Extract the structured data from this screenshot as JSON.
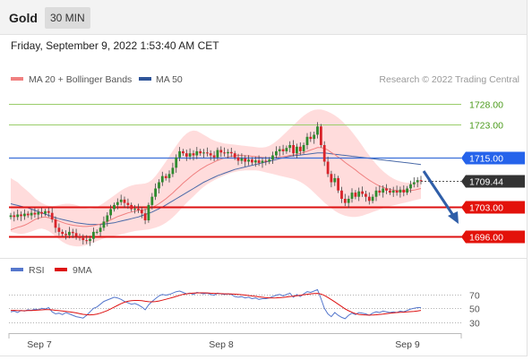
{
  "header": {
    "symbol": "Gold",
    "timeframe": "30 MIN"
  },
  "datetime": "Friday, September 9, 2022 1:53:40 AM CET",
  "legend": {
    "ma20": "MA 20 + Bollinger Bands",
    "ma50": "MA 50",
    "credit": "Research © 2022 Trading Central"
  },
  "colors": {
    "bullish": "#2e8b2e",
    "bearish": "#d9232a",
    "resistance": "#9acd6a",
    "pivot": "#3a6fd8",
    "support": "#dd1111",
    "ma50": "#4a6aa8",
    "ma20": "#f08080",
    "bands": "#ffd6d6"
  },
  "chart_data": [
    {
      "type": "candlestick",
      "x_ticks": [
        "Sep 7",
        "Sep 8",
        "Sep 9"
      ],
      "y_range": [
        1692,
        1731
      ],
      "levels": [
        {
          "label": "1728.00",
          "value": 1728.0,
          "kind": "resistance"
        },
        {
          "label": "1723.00",
          "value": 1723.0,
          "kind": "resistance"
        },
        {
          "label": "1715.00",
          "value": 1715.0,
          "kind": "pivot"
        },
        {
          "label": "1709.44",
          "value": 1709.44,
          "kind": "last"
        },
        {
          "label": "1703.00",
          "value": 1703.0,
          "kind": "support"
        },
        {
          "label": "1696.00",
          "value": 1696.0,
          "kind": "support"
        }
      ],
      "closes": [
        1701,
        1700.6,
        1701.2,
        1700.8,
        1701.4,
        1701,
        1701.6,
        1701.2,
        1701.8,
        1701.4,
        1702,
        1701.6,
        1700,
        1698,
        1697,
        1696.5,
        1696.2,
        1697,
        1696.7,
        1696,
        1695.5,
        1695,
        1694.8,
        1695.3,
        1697,
        1697,
        1698,
        1699.5,
        1701,
        1702.5,
        1703.5,
        1704.2,
        1704.8,
        1704,
        1703.5,
        1702.5,
        1702.6,
        1702.3,
        1701.5,
        1699.8,
        1703.5,
        1705.5,
        1707.5,
        1709,
        1710.5,
        1710,
        1711,
        1712.5,
        1715,
        1716.5,
        1716,
        1715.2,
        1716,
        1715.5,
        1716.5,
        1716,
        1716.2,
        1716,
        1715.5,
        1715,
        1716.8,
        1716.2,
        1716,
        1716.3,
        1716,
        1715,
        1714.2,
        1714.8,
        1714,
        1714.5,
        1713.8,
        1714.3,
        1713.7,
        1714.2,
        1714,
        1714.5,
        1715.5,
        1716.5,
        1717,
        1716.5,
        1717.3,
        1718,
        1716,
        1717.6,
        1716.5,
        1718,
        1720,
        1719.5,
        1720.5,
        1722.5,
        1718,
        1714,
        1711,
        1709,
        1710,
        1707,
        1705,
        1704,
        1705,
        1706.5,
        1705.5,
        1706.8,
        1706.2,
        1705.5,
        1704.5,
        1705.5,
        1707,
        1706.5,
        1707.5,
        1707,
        1706.5,
        1707,
        1706.5,
        1707.2,
        1706.5,
        1707.5,
        1708.5,
        1709,
        1709.5,
        1709.44
      ],
      "ma20": [
        1697.5,
        1697.8,
        1698.1,
        1698.3,
        1698.6,
        1699,
        1699.5,
        1700,
        1700.3,
        1700.5,
        1700.6,
        1700.4,
        1700.2,
        1699.9,
        1699.6,
        1699.3,
        1699,
        1698.8,
        1698.6,
        1698.5,
        1698.4,
        1698.3,
        1698.3,
        1698.4,
        1698.5,
        1698.7,
        1698.9,
        1699.2,
        1699.5,
        1699.9,
        1700.3,
        1700.7,
        1701,
        1701.3,
        1701.6,
        1701.8,
        1702,
        1702.2,
        1702.3,
        1702.4,
        1702.6,
        1702.9,
        1703.3,
        1703.8,
        1704.4,
        1705,
        1705.7,
        1706.4,
        1707.2,
        1708,
        1708.8,
        1709.5,
        1710.2,
        1710.9,
        1711.5,
        1712.1,
        1712.6,
        1713.1,
        1713.5,
        1713.9,
        1714.3,
        1714.6,
        1714.9,
        1715.1,
        1715.3,
        1715.4,
        1715.5,
        1715.5,
        1715.4,
        1715.4,
        1715.3,
        1715.2,
        1715.1,
        1715,
        1714.9,
        1714.9,
        1714.9,
        1715,
        1715.1,
        1715.2,
        1715.3,
        1715.5,
        1715.6,
        1715.8,
        1716,
        1716.2,
        1716.5,
        1716.8,
        1717.1,
        1717.4,
        1717.4,
        1717.2,
        1716.8,
        1716.2,
        1715.7,
        1715.1,
        1714.5,
        1713.8,
        1713.2,
        1712.6,
        1712,
        1711.3,
        1710.7,
        1710.1,
        1709.5,
        1709,
        1708.5,
        1708.1,
        1707.8,
        1707.5,
        1707.3,
        1707.1,
        1707,
        1706.9,
        1706.9,
        1706.9,
        1707,
        1707.1,
        1707.3,
        1707.5
      ],
      "ma50": [
        1703.8,
        1703.6,
        1703.4,
        1703.2,
        1703,
        1702.8,
        1702.5,
        1702.2,
        1701.9,
        1701.6,
        1701.3,
        1701,
        1700.7,
        1700.4,
        1700.2,
        1700,
        1699.8,
        1699.6,
        1699.4,
        1699.2,
        1699.1,
        1699,
        1698.9,
        1698.8,
        1698.8,
        1698.8,
        1698.8,
        1698.9,
        1699,
        1699.1,
        1699.2,
        1699.4,
        1699.6,
        1699.8,
        1700,
        1700.2,
        1700.4,
        1700.6,
        1700.9,
        1701.2,
        1701.5,
        1701.8,
        1702.2,
        1702.6,
        1703,
        1703.5,
        1704,
        1704.5,
        1705,
        1705.5,
        1706,
        1706.5,
        1707,
        1707.5,
        1708,
        1708.5,
        1709,
        1709.4,
        1709.8,
        1710.2,
        1710.6,
        1710.9,
        1711.2,
        1711.5,
        1711.8,
        1712.1,
        1712.3,
        1712.5,
        1712.7,
        1712.9,
        1713.1,
        1713.3,
        1713.5,
        1713.7,
        1713.9,
        1714.1,
        1714.3,
        1714.5,
        1714.7,
        1714.9,
        1715.1,
        1715.3,
        1715.4,
        1715.5,
        1715.6,
        1715.7,
        1715.8,
        1715.9,
        1716,
        1716.1,
        1716.1,
        1716.1,
        1716,
        1715.9,
        1715.8,
        1715.7,
        1715.6,
        1715.5,
        1715.4,
        1715.3,
        1715.2,
        1715.1,
        1715,
        1714.9,
        1714.8,
        1714.7,
        1714.6,
        1714.5,
        1714.4,
        1714.3,
        1714.2,
        1714.1,
        1714,
        1713.9,
        1713.8,
        1713.7,
        1713.6,
        1713.5,
        1713.4,
        1713.3
      ],
      "bb_upper": [
        1710,
        1709.5,
        1709,
        1708.2,
        1707.5,
        1706.8,
        1706,
        1705.2,
        1704.5,
        1704,
        1703.6,
        1703.3,
        1703.2,
        1703.3,
        1703.5,
        1703.7,
        1703.8,
        1703.8,
        1703.7,
        1703.5,
        1703.2,
        1702.9,
        1702.7,
        1702.6,
        1702.7,
        1703,
        1703.5,
        1704,
        1704.6,
        1705.2,
        1705.8,
        1706.4,
        1707,
        1707.5,
        1707.9,
        1708.2,
        1708.4,
        1708.5,
        1708.6,
        1708.7,
        1709,
        1709.6,
        1710.5,
        1711.6,
        1712.8,
        1714,
        1715.3,
        1716.6,
        1717.8,
        1719,
        1720,
        1720.8,
        1721.3,
        1721.5,
        1721.4,
        1721,
        1720.5,
        1720,
        1719.5,
        1719.1,
        1718.8,
        1718.6,
        1718.4,
        1718.3,
        1718.2,
        1718.1,
        1718,
        1717.9,
        1717.8,
        1717.7,
        1717.6,
        1717.5,
        1717.4,
        1717.4,
        1717.5,
        1717.8,
        1718.3,
        1718.9,
        1719.6,
        1720.4,
        1721.2,
        1722,
        1722.8,
        1723.6,
        1724.4,
        1725.1,
        1725.7,
        1726.2,
        1726.5,
        1726.6,
        1726.6,
        1726.4,
        1726.1,
        1725.7,
        1725.2,
        1724.6,
        1723.9,
        1723.1,
        1722.2,
        1721.2,
        1720.1,
        1719,
        1717.8,
        1716.6,
        1715.5,
        1714.4,
        1713.4,
        1712.5,
        1711.7,
        1711,
        1710.4,
        1709.9,
        1709.5,
        1709.2,
        1709,
        1708.9,
        1708.9,
        1709,
        1709.2,
        1709.5
      ],
      "bb_lower": [
        1697,
        1696.8,
        1696.6,
        1696.5,
        1696.6,
        1696.8,
        1697.1,
        1697.4,
        1697.7,
        1697.8,
        1697.6,
        1697.2,
        1696.6,
        1695.9,
        1695.2,
        1694.6,
        1694.1,
        1693.8,
        1693.6,
        1693.5,
        1693.5,
        1693.6,
        1693.8,
        1694.1,
        1694.4,
        1694.8,
        1695.1,
        1695.4,
        1695.6,
        1695.8,
        1696,
        1696.2,
        1696.4,
        1696.6,
        1696.8,
        1697,
        1697.2,
        1697.3,
        1697.4,
        1697.5,
        1697.6,
        1697.8,
        1698,
        1698.3,
        1698.7,
        1699.2,
        1699.8,
        1700.5,
        1701.3,
        1702.2,
        1703.1,
        1704,
        1704.8,
        1705.6,
        1706.4,
        1707.2,
        1707.9,
        1708.5,
        1709,
        1709.5,
        1709.9,
        1710.3,
        1710.7,
        1711,
        1711.3,
        1711.5,
        1711.7,
        1711.8,
        1711.9,
        1711.9,
        1711.9,
        1711.9,
        1711.8,
        1711.6,
        1711.4,
        1711.2,
        1711,
        1710.8,
        1710.6,
        1710.4,
        1710.2,
        1710,
        1709.8,
        1709.5,
        1709.1,
        1708.6,
        1708,
        1707.3,
        1706.5,
        1705.7,
        1704.9,
        1704.1,
        1703.4,
        1702.7,
        1702.1,
        1701.6,
        1701.2,
        1700.9,
        1700.7,
        1700.6,
        1700.6,
        1700.7,
        1700.9,
        1701.2,
        1701.5,
        1701.8,
        1702.1,
        1702.4,
        1702.7,
        1703,
        1703.2,
        1703.4,
        1703.6,
        1703.8,
        1704,
        1704.2,
        1704.4,
        1704.6,
        1704.8,
        1705
      ]
    },
    {
      "type": "line",
      "legend": [
        "RSI",
        "9MA"
      ],
      "y_ticks": [
        "70",
        "50",
        "30"
      ],
      "levels": [
        70,
        50,
        30
      ],
      "y_range": [
        22,
        84
      ],
      "rsi": [
        45,
        46,
        44,
        47,
        46,
        48,
        47,
        49,
        48,
        50,
        49,
        51,
        45,
        42,
        43,
        41,
        44,
        42,
        40,
        38,
        37,
        36,
        40,
        45,
        50,
        52,
        56,
        60,
        62,
        64,
        66,
        65,
        63,
        60,
        58,
        56,
        57,
        55,
        52,
        48,
        55,
        60,
        64,
        68,
        70,
        69,
        70,
        72,
        74,
        75,
        73,
        71,
        72,
        70,
        73,
        72,
        71,
        72,
        70,
        69,
        72,
        71,
        70,
        71,
        70,
        67,
        66,
        67,
        65,
        66,
        64,
        65,
        63,
        64,
        64,
        65,
        67,
        69,
        70,
        68,
        70,
        72,
        66,
        70,
        67,
        71,
        74,
        73,
        75,
        77,
        64,
        50,
        42,
        38,
        44,
        40,
        37,
        35,
        40,
        43,
        41,
        44,
        43,
        42,
        40,
        43,
        45,
        44,
        46,
        45,
        44,
        45,
        44,
        46,
        45,
        47,
        49,
        50,
        51,
        51
      ],
      "ma9": [
        47,
        47,
        46.8,
        46.7,
        46.6,
        46.8,
        46.9,
        47.2,
        47.4,
        47.8,
        48.1,
        48.2,
        47.8,
        47.2,
        46.7,
        46.1,
        45.6,
        45,
        44.3,
        43.4,
        42.4,
        41.4,
        40.8,
        40.6,
        40.9,
        41.7,
        43,
        44.8,
        46.8,
        49.2,
        51.8,
        54.3,
        56.7,
        58.8,
        60.2,
        61,
        61.4,
        61.4,
        61,
        60.2,
        59.6,
        59.5,
        59.8,
        60.6,
        61.8,
        63.1,
        64.4,
        65.8,
        67.2,
        68.8,
        70.2,
        71,
        71.6,
        72,
        72.2,
        72.4,
        72.4,
        72.2,
        71.9,
        71.6,
        71.4,
        71.2,
        71,
        70.9,
        70.8,
        70.5,
        70.1,
        69.6,
        69.1,
        68.5,
        67.9,
        67.3,
        66.6,
        66,
        65.4,
        65.1,
        65,
        65.1,
        65.4,
        65.8,
        66.4,
        67.1,
        67.6,
        68.3,
        68.9,
        69.6,
        70.3,
        70.9,
        71.4,
        71.6,
        70.7,
        68.6,
        65.7,
        62.5,
        59.3,
        56,
        52.6,
        49.2,
        46.5,
        44.3,
        42.4,
        41.3,
        40.7,
        40.4,
        40.2,
        40.3,
        40.7,
        41.2,
        41.7,
        42.4,
        43,
        43.5,
        43.9,
        44.3,
        44.5,
        44.8,
        45.2,
        45.7,
        46.3,
        47
      ]
    }
  ]
}
